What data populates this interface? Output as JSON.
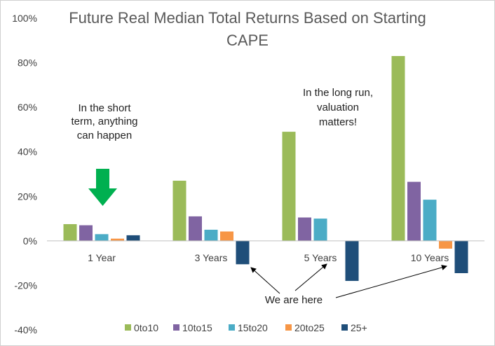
{
  "chart_data": {
    "type": "bar",
    "title": "Future Real Median Total Returns Based on Starting CAPE",
    "title_lines": [
      "Future Real Median Total Returns Based on Starting",
      "CAPE"
    ],
    "categories": [
      "1 Year",
      "3 Years",
      "5 Years",
      "10 Years"
    ],
    "series": [
      {
        "name": "0to10",
        "color": "#9BBB59",
        "values": [
          7.5,
          27,
          49,
          83
        ]
      },
      {
        "name": "10to15",
        "color": "#8064A2",
        "values": [
          7,
          11,
          10.5,
          26.5
        ]
      },
      {
        "name": "15to20",
        "color": "#4BACC6",
        "values": [
          3,
          5,
          10,
          18.5
        ]
      },
      {
        "name": "20to25",
        "color": "#F79646",
        "values": [
          1,
          4.2,
          null,
          -3.5
        ]
      },
      {
        "name": "25+",
        "color": "#1F4E79",
        "values": [
          2.5,
          -10.5,
          -18,
          -14.5
        ]
      }
    ],
    "ylim": [
      -40,
      100
    ],
    "yticks": [
      -40,
      -20,
      0,
      20,
      40,
      60,
      80,
      100
    ],
    "ytick_labels": [
      "-40%",
      "-20%",
      "0%",
      "20%",
      "40%",
      "60%",
      "80%",
      "100%"
    ],
    "grid": false,
    "legend_position": "bottom",
    "annotations": {
      "short_term": [
        "In the short",
        "term, anything",
        "can happen"
      ],
      "long_run": [
        "In the long run,",
        "valuation",
        "matters!"
      ],
      "we_are_here": "We are here"
    },
    "arrow_color": "#00B050"
  }
}
